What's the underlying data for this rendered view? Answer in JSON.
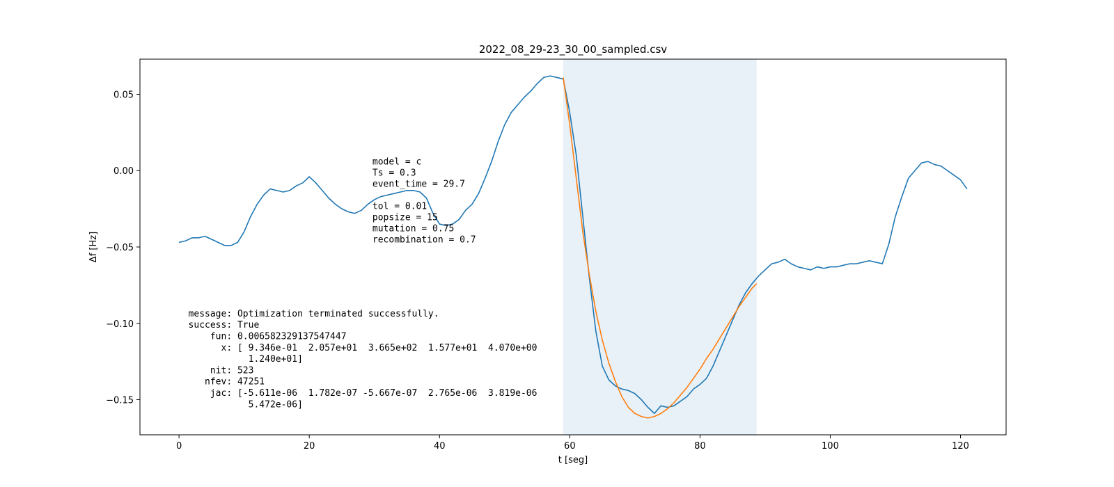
{
  "chart_data": {
    "type": "line",
    "title": "2022_08_29-23_30_00_sampled.csv",
    "xlabel": "t [seg]",
    "ylabel": "Δf [Hz]",
    "xlim": [
      -6,
      127
    ],
    "ylim": [
      -0.173,
      0.073
    ],
    "xticks": [
      0,
      20,
      40,
      60,
      80,
      100,
      120
    ],
    "yticks": [
      0.05,
      0.0,
      -0.05,
      -0.1,
      -0.15
    ],
    "xtick_labels": [
      "0",
      "20",
      "40",
      "60",
      "80",
      "100",
      "120"
    ],
    "ytick_labels": [
      "0.05",
      "0.00",
      "−0.05",
      "−0.10",
      "−0.15"
    ],
    "grid": false,
    "shaded_region": {
      "x_start": 59.0,
      "x_end": 88.7,
      "color": "#e8f0f8"
    },
    "series": [
      {
        "color": "#1f77b4",
        "x": [
          0,
          1,
          2,
          3,
          4,
          5,
          6,
          7,
          8,
          9,
          10,
          11,
          12,
          13,
          14,
          15,
          16,
          17,
          18,
          19,
          20,
          21,
          22,
          23,
          24,
          25,
          26,
          27,
          28,
          29,
          30,
          31,
          32,
          33,
          34,
          35,
          36,
          37,
          38,
          39,
          40,
          41,
          42,
          43,
          44,
          45,
          46,
          47,
          48,
          49,
          50,
          51,
          52,
          53,
          54,
          55,
          56,
          57,
          58,
          59,
          60,
          61,
          62,
          63,
          64,
          65,
          66,
          67,
          68,
          69,
          70,
          71,
          72,
          73,
          74,
          75,
          76,
          77,
          78,
          79,
          80,
          81,
          82,
          83,
          84,
          85,
          86,
          87,
          88,
          89,
          90,
          91,
          92,
          93,
          94,
          95,
          96,
          97,
          98,
          99,
          100,
          101,
          102,
          103,
          104,
          105,
          106,
          107,
          108,
          109,
          110,
          111,
          112,
          113,
          114,
          115,
          116,
          117,
          118,
          119,
          120,
          121
        ],
        "y": [
          -0.047,
          -0.046,
          -0.044,
          -0.044,
          -0.043,
          -0.045,
          -0.047,
          -0.049,
          -0.049,
          -0.047,
          -0.04,
          -0.03,
          -0.022,
          -0.016,
          -0.012,
          -0.013,
          -0.014,
          -0.013,
          -0.01,
          -0.008,
          -0.004,
          -0.008,
          -0.013,
          -0.018,
          -0.022,
          -0.025,
          -0.027,
          -0.028,
          -0.026,
          -0.022,
          -0.019,
          -0.017,
          -0.016,
          -0.015,
          -0.014,
          -0.013,
          -0.013,
          -0.014,
          -0.018,
          -0.028,
          -0.035,
          -0.036,
          -0.035,
          -0.032,
          -0.026,
          -0.022,
          -0.015,
          -0.005,
          0.006,
          0.019,
          0.03,
          0.038,
          0.043,
          0.048,
          0.052,
          0.057,
          0.061,
          0.062,
          0.061,
          0.06,
          0.038,
          0.01,
          -0.03,
          -0.07,
          -0.105,
          -0.128,
          -0.137,
          -0.141,
          -0.143,
          -0.144,
          -0.146,
          -0.15,
          -0.155,
          -0.159,
          -0.154,
          -0.155,
          -0.154,
          -0.151,
          -0.148,
          -0.143,
          -0.14,
          -0.136,
          -0.128,
          -0.118,
          -0.108,
          -0.098,
          -0.088,
          -0.08,
          -0.074,
          -0.069,
          -0.065,
          -0.061,
          -0.06,
          -0.058,
          -0.061,
          -0.063,
          -0.064,
          -0.065,
          -0.063,
          -0.064,
          -0.063,
          -0.063,
          -0.062,
          -0.061,
          -0.061,
          -0.06,
          -0.059,
          -0.06,
          -0.061,
          -0.048,
          -0.03,
          -0.017,
          -0.005,
          0.0,
          0.005,
          0.006,
          0.004,
          0.003,
          0.0,
          -0.003,
          -0.006,
          -0.012
        ]
      },
      {
        "color": "#ff7f0e",
        "x": [
          59.0,
          60.0,
          61.0,
          62.0,
          63.0,
          64.0,
          65.0,
          66.0,
          67.0,
          68.0,
          69.0,
          70.0,
          71.0,
          72.0,
          73.0,
          74.0,
          75.0,
          76.0,
          77.0,
          78.0,
          79.0,
          80.0,
          81.0,
          82.0,
          83.0,
          84.0,
          85.0,
          86.0,
          87.0,
          88.0,
          88.7
        ],
        "y": [
          0.061,
          0.03,
          -0.005,
          -0.04,
          -0.068,
          -0.092,
          -0.111,
          -0.126,
          -0.138,
          -0.148,
          -0.155,
          -0.159,
          -0.161,
          -0.162,
          -0.161,
          -0.159,
          -0.156,
          -0.152,
          -0.147,
          -0.142,
          -0.136,
          -0.13,
          -0.123,
          -0.117,
          -0.11,
          -0.103,
          -0.096,
          -0.089,
          -0.083,
          -0.077,
          -0.074
        ]
      }
    ],
    "annotations": {
      "params": [
        "model = c",
        "Ts = 0.3",
        "event_time = 29.7",
        "",
        "tol = 0.01",
        "popsize = 15",
        "mutation = 0.75",
        "recombination = 0.7"
      ],
      "result": [
        " message: Optimization terminated successfully.",
        " success: True",
        "     fun: 0.006582329137547447",
        "       x: [ 9.346e-01  2.057e+01  3.665e+02  1.577e+01  4.070e+00",
        "            1.240e+01]",
        "     nit: 523",
        "    nfev: 47251",
        "     jac: [-5.611e-06  1.782e-07 -5.667e-07  2.765e-06  3.819e-06",
        "            5.472e-06]"
      ]
    }
  }
}
